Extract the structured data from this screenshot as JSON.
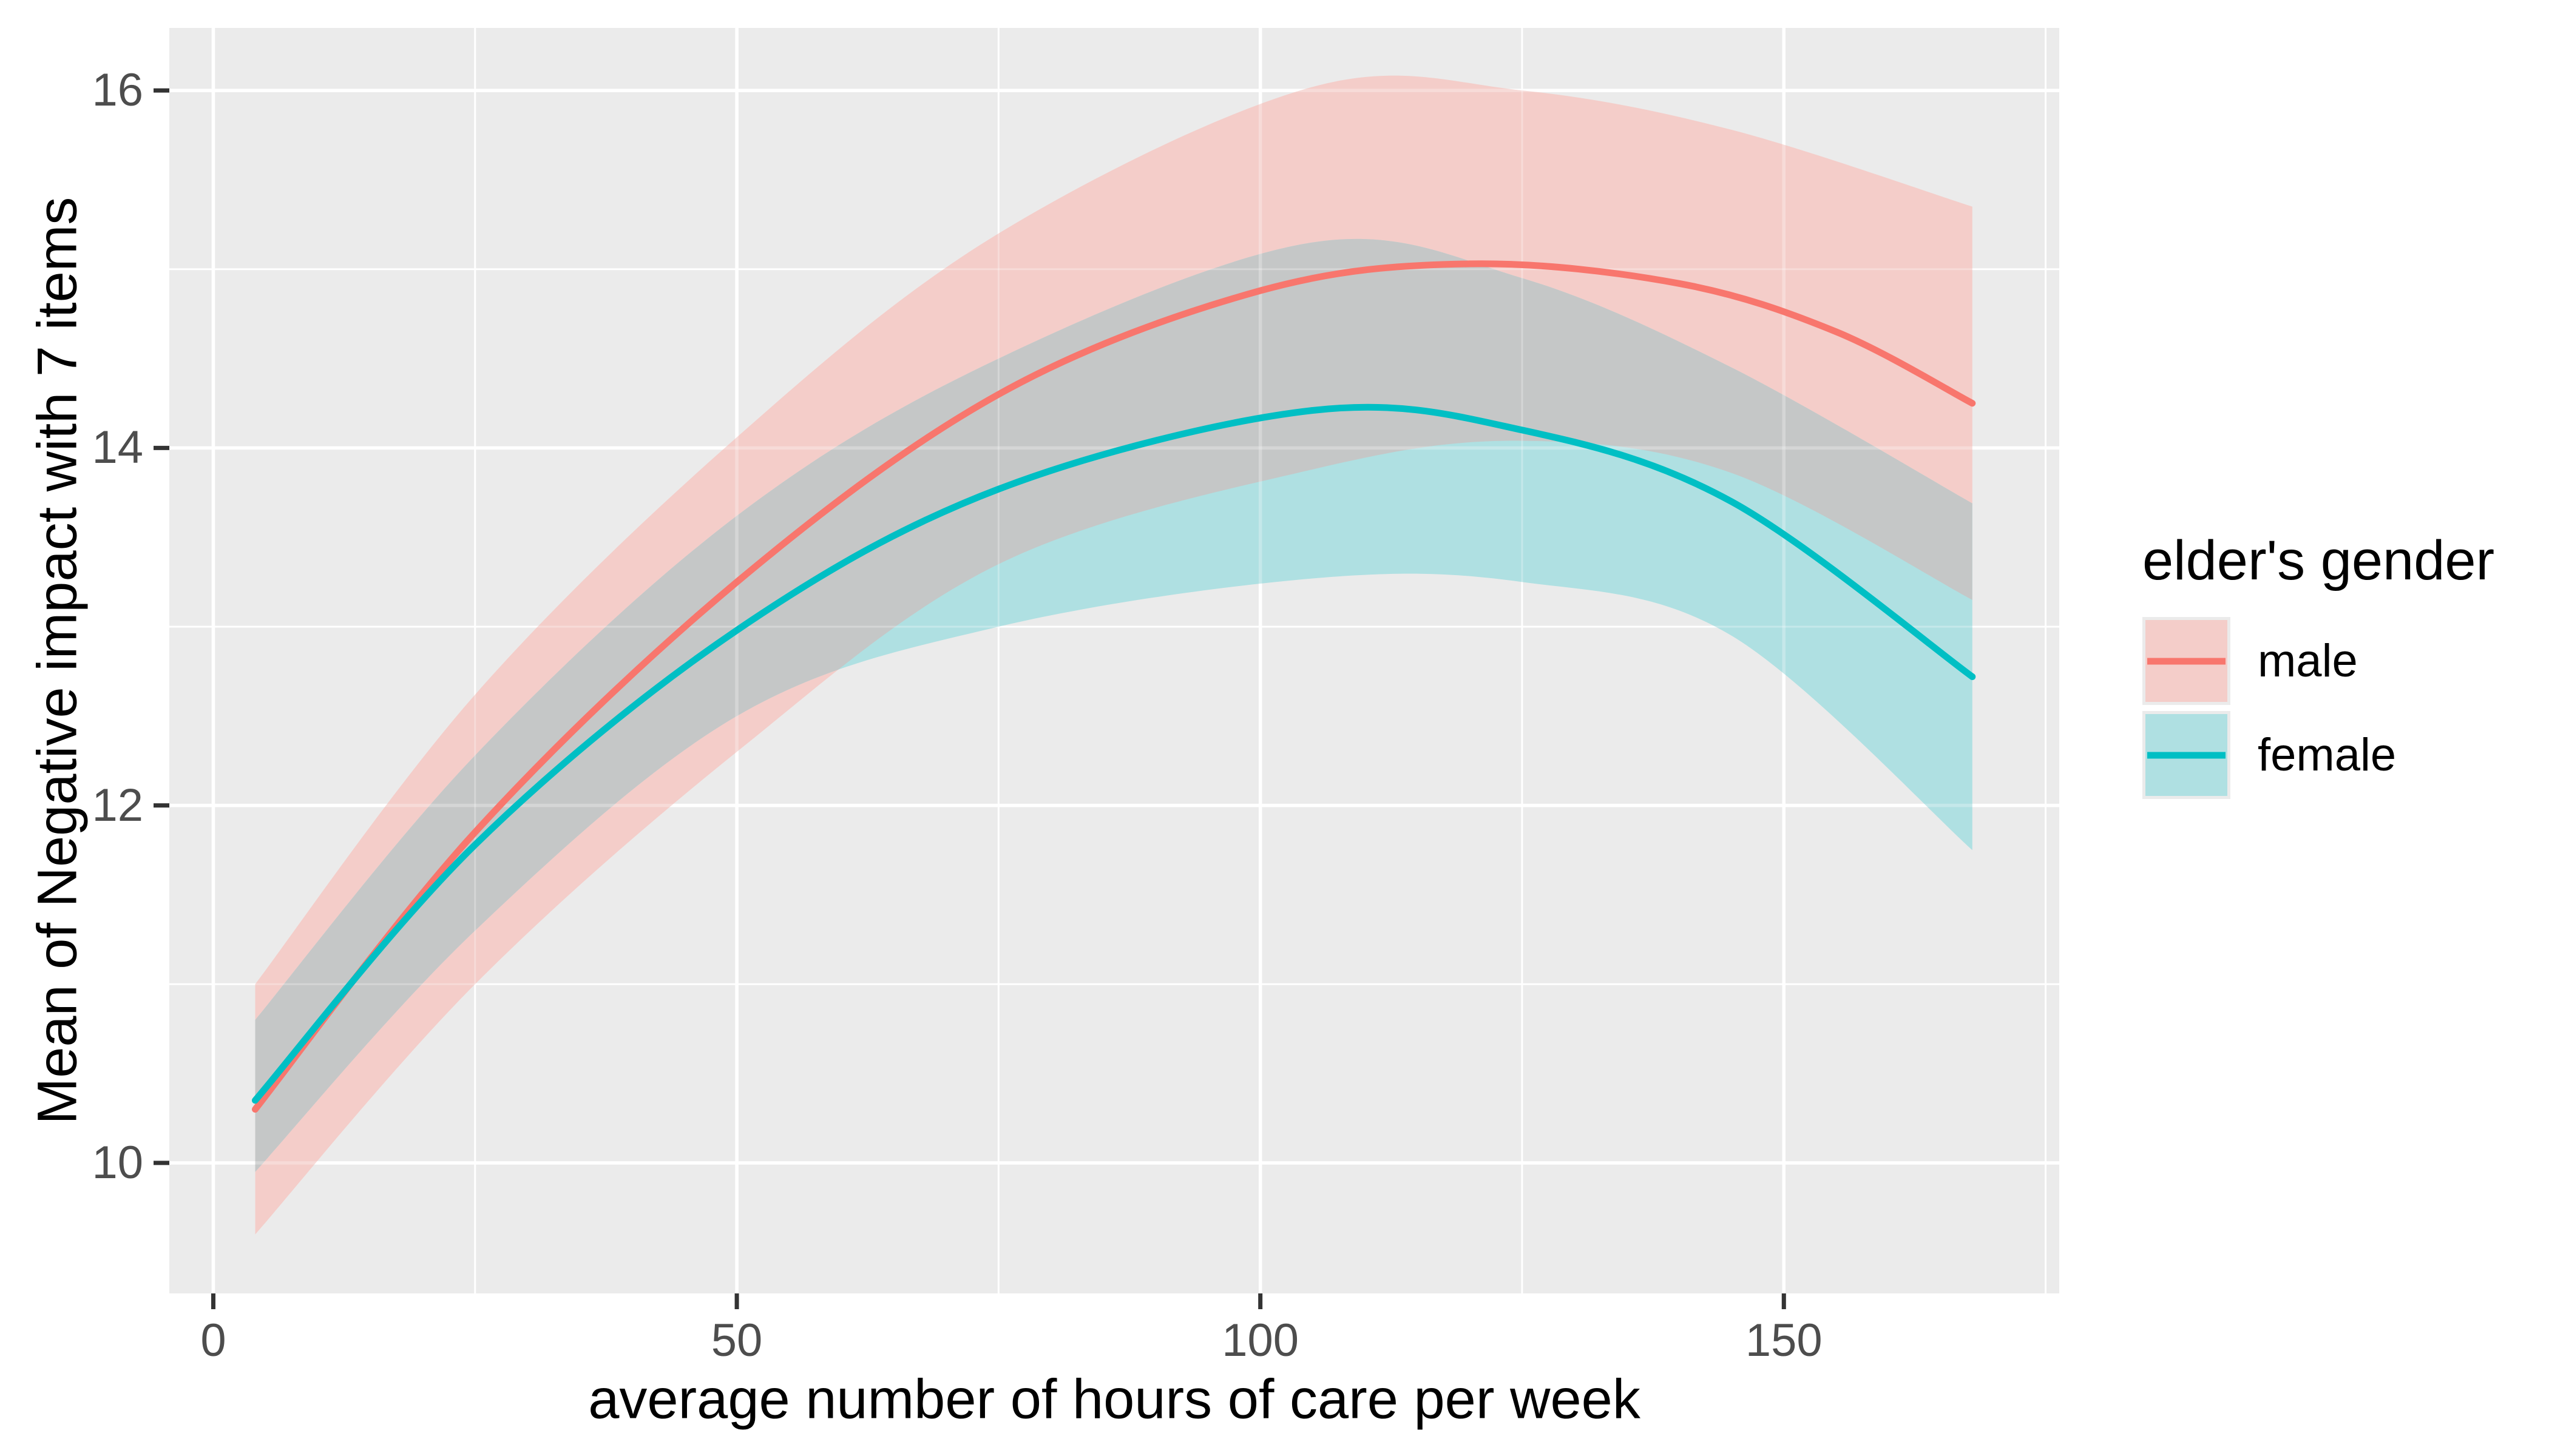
{
  "chart_data": {
    "type": "line",
    "title": "",
    "xlabel": "average number of hours of care per week",
    "ylabel": "Mean of Negative impact with 7 items",
    "x_axis": {
      "ticks": [
        0,
        50,
        100,
        150
      ],
      "minor_ticks": [
        25,
        75,
        125,
        175
      ],
      "range": [
        -4.2,
        176.3
      ]
    },
    "y_axis": {
      "ticks": [
        10,
        12,
        14,
        16
      ],
      "minor_ticks": [
        11,
        13,
        15
      ],
      "range": [
        9.27,
        16.35
      ]
    },
    "grid": "on",
    "panel_bg": "#EBEBEB",
    "grid_color": "#FFFFFF",
    "tick_label_color": "#4D4D4D",
    "tick_mark_color": "#333333",
    "overlap_fill": "#C5C7C7",
    "legend": {
      "title": "elder's gender",
      "position": "right",
      "entries": [
        {
          "label": "male",
          "line_color": "#F8766D",
          "fill_color": "#F4CDC9"
        },
        {
          "label": "female",
          "line_color": "#00BFC4",
          "fill_color": "#AFE0E2"
        }
      ]
    },
    "series": [
      {
        "name": "male",
        "line_color": "#F8766D",
        "band_fill": "#F4CDC9",
        "line": [
          [
            4,
            10.3
          ],
          [
            25,
            11.85
          ],
          [
            50,
            13.25
          ],
          [
            75,
            14.3
          ],
          [
            100,
            14.88
          ],
          [
            120,
            15.03
          ],
          [
            140,
            14.92
          ],
          [
            155,
            14.65
          ],
          [
            168,
            14.25
          ]
        ],
        "upper": [
          [
            4,
            11.0
          ],
          [
            25,
            12.62
          ],
          [
            50,
            14.06
          ],
          [
            75,
            15.2
          ],
          [
            105,
            16.02
          ],
          [
            125,
            16.0
          ],
          [
            145,
            15.78
          ],
          [
            168,
            15.35
          ]
        ],
        "lower": [
          [
            4,
            9.6
          ],
          [
            25,
            11.0
          ],
          [
            50,
            12.3
          ],
          [
            75,
            13.35
          ],
          [
            105,
            13.88
          ],
          [
            125,
            14.04
          ],
          [
            145,
            13.86
          ],
          [
            168,
            13.15
          ]
        ]
      },
      {
        "name": "female",
        "line_color": "#00BFC4",
        "band_fill": "#AFE0E2",
        "line": [
          [
            4,
            10.35
          ],
          [
            25,
            11.78
          ],
          [
            50,
            12.98
          ],
          [
            75,
            13.77
          ],
          [
            105,
            14.21
          ],
          [
            125,
            14.1
          ],
          [
            145,
            13.7
          ],
          [
            168,
            12.72
          ]
        ],
        "upper": [
          [
            4,
            10.8
          ],
          [
            25,
            12.28
          ],
          [
            50,
            13.62
          ],
          [
            75,
            14.5
          ],
          [
            105,
            15.15
          ],
          [
            125,
            14.95
          ],
          [
            145,
            14.45
          ],
          [
            168,
            13.69
          ]
        ],
        "lower": [
          [
            4,
            9.95
          ],
          [
            25,
            11.3
          ],
          [
            50,
            12.5
          ],
          [
            75,
            13.0
          ],
          [
            105,
            13.27
          ],
          [
            125,
            13.25
          ],
          [
            145,
            12.95
          ],
          [
            168,
            11.75
          ]
        ]
      }
    ]
  }
}
